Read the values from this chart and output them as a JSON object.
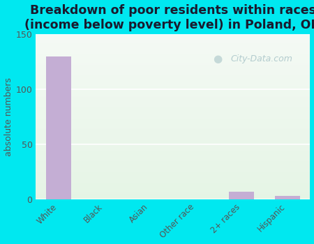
{
  "categories": [
    "White",
    "Black",
    "Asian",
    "Other race",
    "2+ races",
    "Hispanic"
  ],
  "values": [
    130,
    0,
    0,
    0,
    7,
    3
  ],
  "bar_color": "#c4aed4",
  "title": "Breakdown of poor residents within races\n(income below poverty level) in Poland, OH",
  "ylabel": "absolute numbers",
  "ylim": [
    0,
    150
  ],
  "yticks": [
    0,
    50,
    100,
    150
  ],
  "outer_bg": "#00e8f0",
  "watermark": "City-Data.com",
  "title_fontsize": 13,
  "title_color": "#1a1a2e",
  "tick_color": "#555555",
  "ylabel_color": "#555555"
}
